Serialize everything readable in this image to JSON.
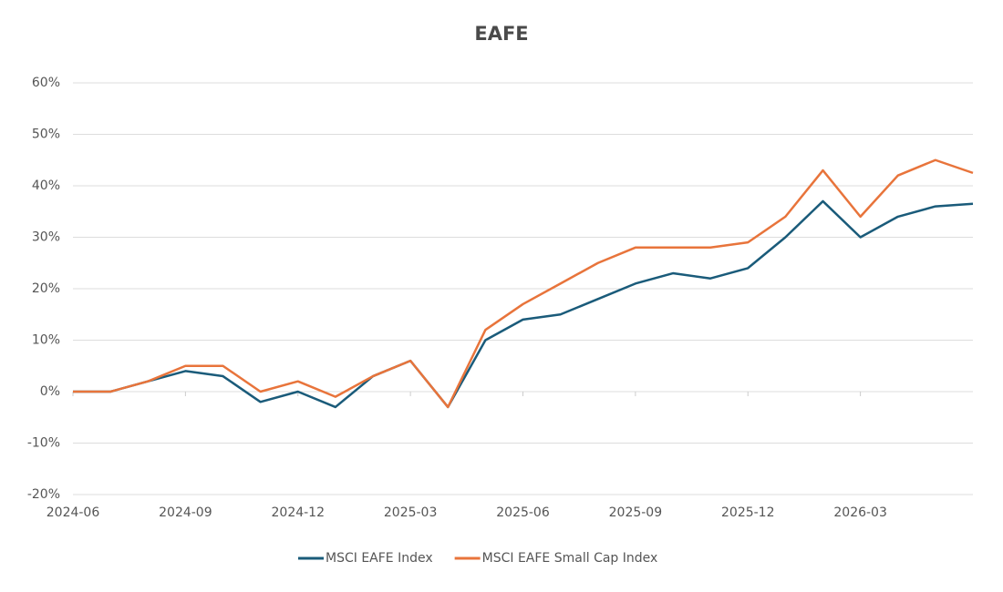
{
  "chart_data": {
    "type": "line",
    "title": "EAFE",
    "x": [
      "2024-06",
      "2024-07",
      "2024-08",
      "2024-09",
      "2024-10",
      "2024-11",
      "2024-12",
      "2025-01",
      "2025-02",
      "2025-03",
      "2025-04",
      "2025-05",
      "2025-06",
      "2025-07",
      "2025-08",
      "2025-09",
      "2025-10",
      "2025-11",
      "2025-12",
      "2026-01",
      "2026-02",
      "2026-03",
      "2026-04",
      "2026-05",
      "2026-06"
    ],
    "series": [
      {
        "name": "MSCI EAFE Index",
        "color": "#1a5b7a",
        "values": [
          0,
          0,
          2,
          4,
          3,
          -2,
          0,
          -3,
          3,
          6,
          -3,
          10,
          14,
          15,
          18,
          21,
          23,
          22,
          24,
          30,
          37,
          30,
          34,
          36,
          36.5
        ]
      },
      {
        "name": "MSCI EAFE Small Cap Index",
        "color": "#e8743b",
        "values": [
          0,
          0,
          2,
          5,
          5,
          0,
          2,
          -1,
          3,
          6,
          -3,
          12,
          17,
          21,
          25,
          28,
          28,
          28,
          29,
          34,
          43,
          34,
          42,
          45,
          42.5
        ]
      }
    ],
    "xlim": [
      "2024-06",
      "2026-06"
    ],
    "xticks": [
      "2024-06",
      "2024-09",
      "2024-12",
      "2025-03",
      "2025-06",
      "2025-09",
      "2025-12",
      "2026-03"
    ],
    "ylim": [
      -20,
      60
    ],
    "yticks": [
      {
        "value": -20,
        "label": "-20%"
      },
      {
        "value": -10,
        "label": "-10%"
      },
      {
        "value": 0,
        "label": "0%"
      },
      {
        "value": 10,
        "label": "10%"
      },
      {
        "value": 20,
        "label": "20%"
      },
      {
        "value": 30,
        "label": "30%"
      },
      {
        "value": 40,
        "label": "40%"
      },
      {
        "value": 50,
        "label": "50%"
      },
      {
        "value": 60,
        "label": "60%"
      }
    ],
    "grid": true,
    "legend": "bottom"
  }
}
